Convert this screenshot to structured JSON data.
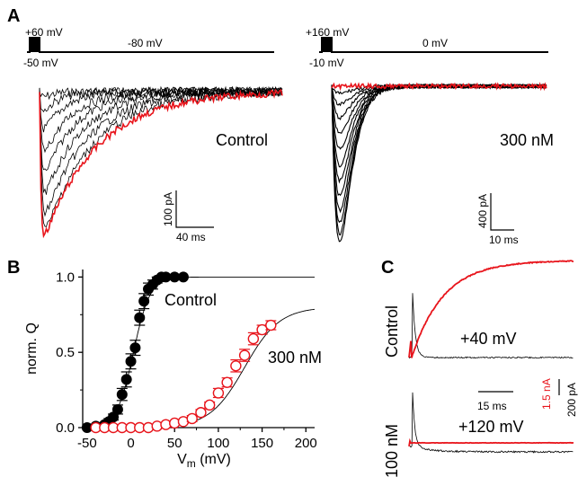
{
  "panels": {
    "a": {
      "letter": "A",
      "left": {
        "protocol_labels": {
          "pre": "+60 mV",
          "hold": "-80 mV",
          "base": "-50 mV"
        },
        "condition": "Control",
        "scalebar": {
          "y": "100 pA",
          "x": "40 ms"
        }
      },
      "right": {
        "protocol_labels": {
          "pre": "+160 mV",
          "hold": "0 mV",
          "base": "-10 mV"
        },
        "condition": "300 nM",
        "scalebar": {
          "y": "400 pA",
          "x": "10 ms"
        }
      }
    },
    "b": {
      "letter": "B",
      "series_labels": {
        "control": "Control",
        "drug": "300 nM"
      }
    },
    "c": {
      "letter": "C",
      "row_labels": {
        "top": "Control",
        "bottom": "100 nM"
      },
      "voltage_labels": {
        "top": "+40 mV",
        "bottom": "+120 mV"
      },
      "scalebar": {
        "x": "15 ms",
        "red": "1.5 nA",
        "black": "200 pA"
      }
    }
  },
  "colors": {
    "red": "#e8141b",
    "black": "#000000"
  },
  "chart_data": {
    "type": "scatter",
    "xlabel": "V",
    "xlabel_sub": "m",
    "xlabel_unit": " (mV)",
    "ylabel": "norm. Q",
    "xlim": [
      -55,
      210
    ],
    "ylim": [
      0,
      1.05
    ],
    "xticks": [
      -50,
      0,
      50,
      100,
      150,
      200
    ],
    "xtick_labels": [
      "-50",
      "0",
      "50",
      "100",
      "150",
      "200"
    ],
    "yticks": [
      0,
      0.5,
      1.0
    ],
    "ytick_labels": [
      "0.0",
      "0.5",
      "1.0"
    ],
    "series": [
      {
        "name": "Control",
        "color": "#000000",
        "fill": "filled",
        "x": [
          -50,
          -40,
          -30,
          -25,
          -20,
          -15,
          -10,
          -5,
          0,
          5,
          10,
          15,
          20,
          25,
          30,
          35,
          40,
          50,
          60
        ],
        "y": [
          0.0,
          0.01,
          0.02,
          0.04,
          0.07,
          0.12,
          0.22,
          0.32,
          0.44,
          0.53,
          0.73,
          0.84,
          0.92,
          0.95,
          0.98,
          1.0,
          1.0,
          1.0,
          1.0
        ],
        "err": [
          0,
          0,
          0.01,
          0.02,
          0.02,
          0.03,
          0.04,
          0.05,
          0.05,
          0.05,
          0.05,
          0.05,
          0.04,
          0.03,
          0.02,
          0.01,
          0,
          0,
          0
        ],
        "fit": {
          "v_half": 3,
          "slope": 9.5
        }
      },
      {
        "name": "300 nM",
        "color": "#e8141b",
        "fill": "open",
        "x": [
          -40,
          -30,
          -20,
          -10,
          0,
          10,
          20,
          30,
          40,
          50,
          60,
          70,
          80,
          90,
          100,
          110,
          120,
          130,
          140,
          150,
          160
        ],
        "y": [
          0.0,
          0.0,
          0.0,
          0.0,
          0.0,
          0.0,
          0.0,
          0.01,
          0.02,
          0.03,
          0.04,
          0.06,
          0.1,
          0.15,
          0.23,
          0.3,
          0.41,
          0.48,
          0.59,
          0.65,
          0.68
        ],
        "err": [
          0,
          0,
          0,
          0,
          0,
          0,
          0,
          0.01,
          0.01,
          0.01,
          0.01,
          0.02,
          0.02,
          0.02,
          0.03,
          0.03,
          0.04,
          0.04,
          0.04,
          0.03,
          0.03
        ],
        "fit": {
          "v_half": 130,
          "slope": 20,
          "max": 0.8
        }
      }
    ]
  }
}
